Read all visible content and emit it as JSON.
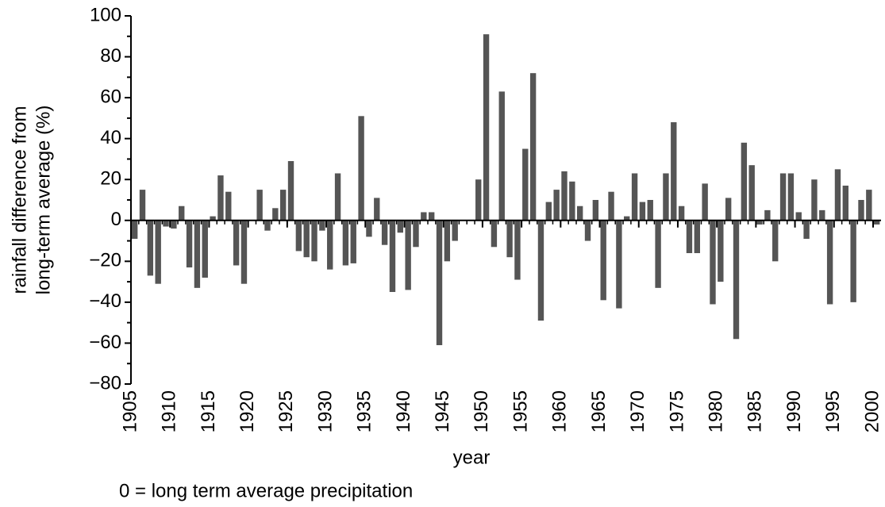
{
  "chart_data": {
    "type": "bar",
    "ylabel": [
      "rainfall difference from",
      "long-term average (%)"
    ],
    "xlabel": "year",
    "note": "0 = long term average precipitation",
    "color": "#555555",
    "x": [
      1905,
      1906,
      1907,
      1908,
      1909,
      1910,
      1911,
      1912,
      1913,
      1914,
      1915,
      1916,
      1917,
      1918,
      1919,
      1920,
      1921,
      1922,
      1923,
      1924,
      1925,
      1926,
      1927,
      1928,
      1929,
      1930,
      1931,
      1932,
      1933,
      1934,
      1935,
      1936,
      1937,
      1938,
      1939,
      1940,
      1941,
      1942,
      1943,
      1944,
      1945,
      1946,
      1947,
      1948,
      1949,
      1950,
      1951,
      1952,
      1953,
      1954,
      1955,
      1956,
      1957,
      1958,
      1959,
      1960,
      1961,
      1962,
      1963,
      1964,
      1965,
      1966,
      1967,
      1968,
      1969,
      1970,
      1971,
      1972,
      1973,
      1974,
      1975,
      1976,
      1977,
      1978,
      1979,
      1980,
      1981,
      1982,
      1983,
      1984,
      1985,
      1986,
      1987,
      1988,
      1989,
      1990,
      1991,
      1992,
      1993,
      1994,
      1995,
      1996,
      1997,
      1998,
      1999,
      2000
    ],
    "values": [
      -9,
      15,
      -27,
      -31,
      -3,
      -4,
      7,
      -23,
      -33,
      -28,
      2,
      22,
      14,
      -22,
      -31,
      null,
      15,
      -5,
      6,
      15,
      29,
      -15,
      -18,
      -20,
      -5,
      -24,
      23,
      -22,
      -21,
      51,
      -8,
      11,
      -12,
      -35,
      -6,
      -34,
      -13,
      4,
      4,
      -61,
      -20,
      -10,
      null,
      null,
      20,
      91,
      -13,
      63,
      -18,
      -29,
      35,
      72,
      -49,
      9,
      15,
      24,
      19,
      7,
      -10,
      10,
      -39,
      14,
      -43,
      2,
      23,
      9,
      10,
      -33,
      23,
      48,
      7,
      -16,
      -16,
      18,
      -41,
      -30,
      11,
      -58,
      38,
      27,
      -2,
      5,
      -20,
      23,
      23,
      4,
      -9,
      20,
      5,
      -41,
      25,
      17,
      -40,
      10,
      15,
      -2
    ],
    "xlim": [
      1905,
      2000
    ],
    "xticks": [
      1905,
      1910,
      1915,
      1920,
      1925,
      1930,
      1935,
      1940,
      1945,
      1950,
      1955,
      1960,
      1965,
      1970,
      1975,
      1980,
      1985,
      1990,
      1995,
      2000
    ],
    "ylim": [
      -80,
      100
    ],
    "yticks": [
      {
        "value": -80,
        "label": "−80"
      },
      {
        "value": -60,
        "label": "−60"
      },
      {
        "value": -40,
        "label": "−40"
      },
      {
        "value": -20,
        "label": "−20"
      },
      0,
      20,
      40,
      60,
      80,
      100
    ]
  }
}
